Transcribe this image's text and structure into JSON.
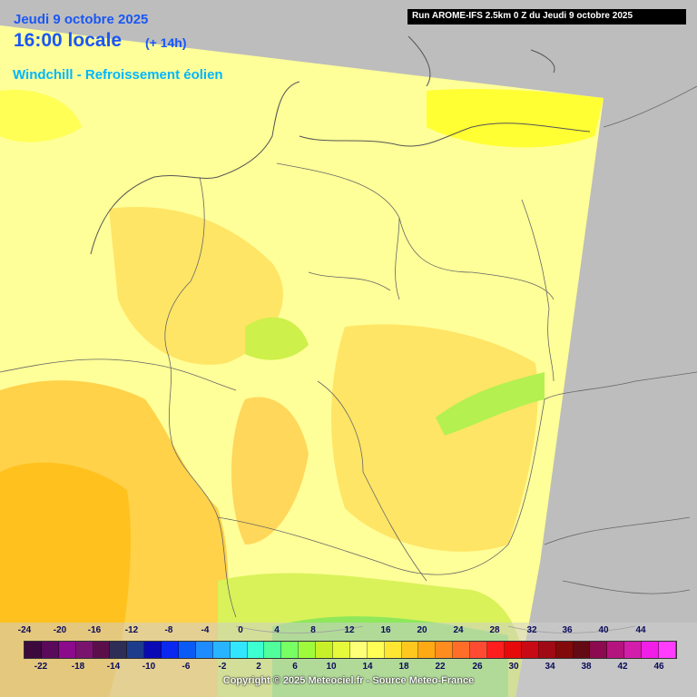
{
  "header": {
    "date": "Jeudi 9 octobre 2025",
    "time": "16:00 locale",
    "offset": "(+ 14h)",
    "parameter": "Windchill - Refroissement éolien",
    "run": "Run AROME-IFS 2.5km 0 Z du Jeudi 9 octobre 2025"
  },
  "legend": {
    "top_ticks": [
      "-24",
      "-20",
      "-16",
      "-12",
      "-8",
      "-4",
      "0",
      "4",
      "8",
      "12",
      "16",
      "20",
      "24",
      "28",
      "32",
      "36",
      "40",
      "44"
    ],
    "bottom_ticks": [
      "-22",
      "-18",
      "-14",
      "-10",
      "-6",
      "-2",
      "2",
      "6",
      "10",
      "14",
      "18",
      "22",
      "26",
      "30",
      "34",
      "38",
      "42",
      "46"
    ],
    "colors": [
      "#3c0a3c",
      "#5a0a5a",
      "#8c0a8c",
      "#78146e",
      "#5a0f4b",
      "#2d2d55",
      "#1e3c8c",
      "#0a0ab4",
      "#0a28f0",
      "#0a5af5",
      "#1e8cff",
      "#28b4ff",
      "#32e6ff",
      "#3cffd2",
      "#50ff9b",
      "#78ff64",
      "#a0fa3c",
      "#c8f028",
      "#e6fa3c",
      "#ffff78",
      "#ffff55",
      "#ffe632",
      "#ffc81e",
      "#ffaa14",
      "#ff8c1e",
      "#ff6e28",
      "#ff4b32",
      "#ff1e1e",
      "#e60a0a",
      "#c80a14",
      "#a00a14",
      "#820a0a",
      "#640a14",
      "#8c0a50",
      "#b4147d",
      "#d21eaa",
      "#f01ee6",
      "#ff3cff"
    ]
  },
  "copyright": "Copyright © 2025 Meteociel.fr - Source Meteo-France"
}
